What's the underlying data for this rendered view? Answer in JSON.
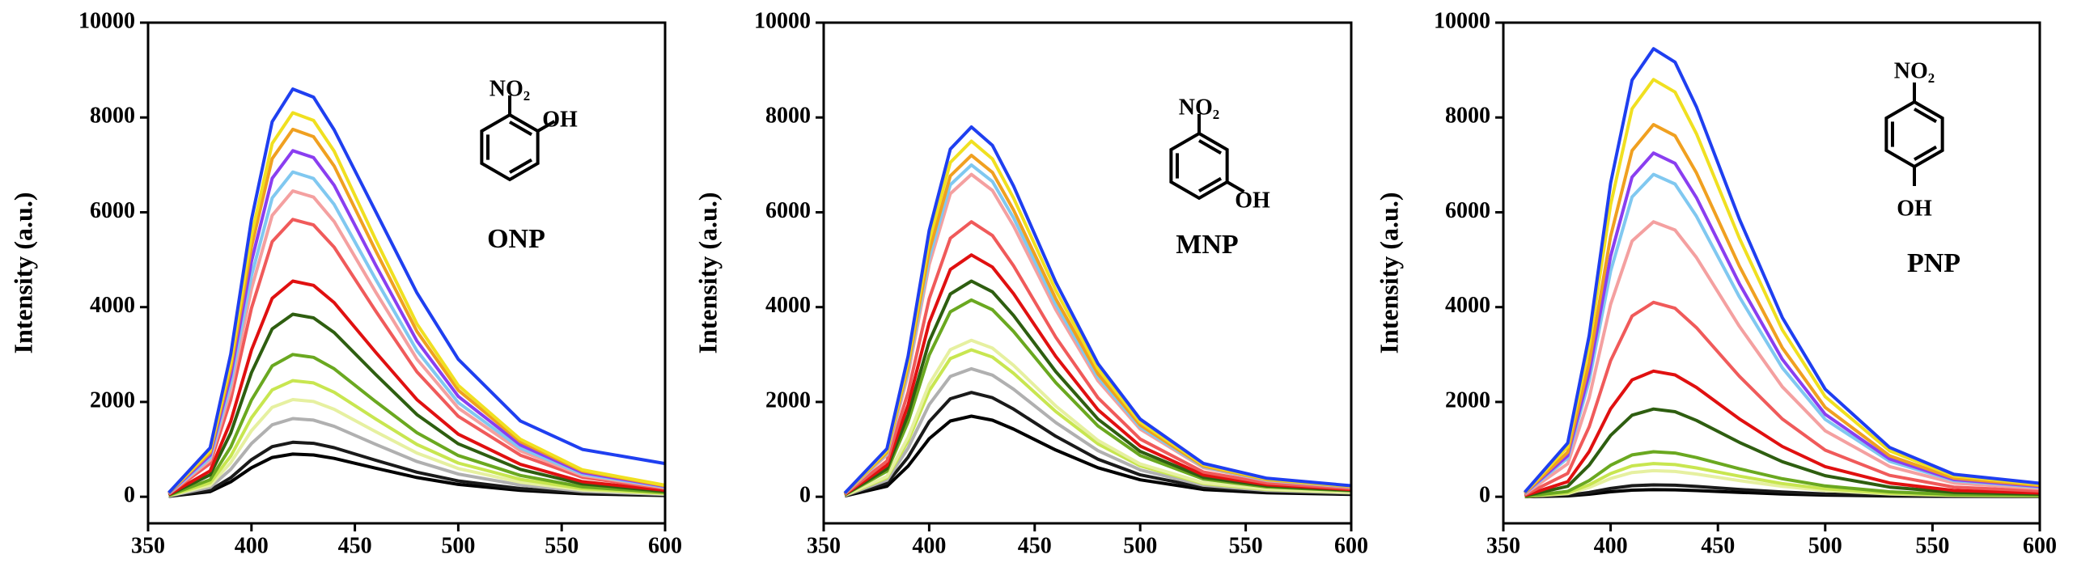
{
  "chart_data": [
    {
      "type": "line",
      "y_label": "Intensity (a.u.)",
      "annotations": [
        "NO₂",
        "OH",
        "ONP"
      ],
      "xlim": [
        350,
        600
      ],
      "ylim": [
        -560,
        10000
      ],
      "xticks": [
        350,
        400,
        450,
        500,
        550,
        600
      ],
      "yticks": [
        0,
        2000,
        4000,
        6000,
        8000,
        10000
      ],
      "x": [
        360,
        380,
        390,
        400,
        410,
        420,
        430,
        440,
        460,
        480,
        500,
        530,
        560,
        600
      ],
      "series": [
        {
          "color": "#000000",
          "values": [
            9,
            108,
            315,
            612,
            828,
            900,
            882,
            810,
            603,
            405,
            261,
            135,
            63,
            27
          ]
        },
        {
          "color": "#1a1a1a",
          "values": [
            12,
            138,
            403,
            782,
            1058,
            1150,
            1127,
            1035,
            771,
            518,
            334,
            173,
            81,
            35
          ]
        },
        {
          "color": "#b0b0b0",
          "values": [
            17,
            198,
            578,
            1122,
            1518,
            1650,
            1617,
            1485,
            1106,
            743,
            479,
            248,
            116,
            50
          ]
        },
        {
          "color": "#e6f0a0",
          "values": [
            21,
            246,
            718,
            1394,
            1886,
            2050,
            2009,
            1845,
            1374,
            923,
            595,
            308,
            144,
            62
          ]
        },
        {
          "color": "#c8e650",
          "values": [
            25,
            294,
            858,
            1666,
            2254,
            2450,
            2401,
            2205,
            1642,
            1103,
            711,
            368,
            172,
            74
          ]
        },
        {
          "color": "#6aa820",
          "values": [
            30,
            360,
            1050,
            2040,
            2760,
            3000,
            2940,
            2700,
            2010,
            1350,
            870,
            450,
            210,
            90
          ]
        },
        {
          "color": "#2e5e10",
          "values": [
            39,
            462,
            1348,
            2618,
            3542,
            3850,
            3773,
            3465,
            2580,
            1733,
            1117,
            578,
            270,
            116
          ]
        },
        {
          "color": "#e01010",
          "values": [
            46,
            546,
            1593,
            3094,
            4186,
            4550,
            4459,
            4095,
            3049,
            2048,
            1320,
            683,
            319,
            137
          ]
        },
        {
          "color": "#f05a5a",
          "values": [
            59,
            702,
            2048,
            3978,
            5382,
            5850,
            5733,
            5265,
            3920,
            2633,
            1697,
            878,
            410,
            176
          ]
        },
        {
          "color": "#f4a0a0",
          "values": [
            65,
            774,
            2258,
            4386,
            5934,
            6450,
            6321,
            5805,
            4322,
            2903,
            1871,
            968,
            452,
            194
          ]
        },
        {
          "color": "#80c8f0",
          "values": [
            69,
            822,
            2398,
            4658,
            6302,
            6850,
            6713,
            6165,
            4590,
            3083,
            1987,
            1028,
            480,
            206
          ]
        },
        {
          "color": "#8a3ef0",
          "values": [
            73,
            876,
            2555,
            4964,
            6716,
            7300,
            7154,
            6570,
            4891,
            3285,
            2117,
            1095,
            511,
            219
          ]
        },
        {
          "color": "#f0a020",
          "values": [
            78,
            930,
            2713,
            5270,
            7130,
            7750,
            7595,
            6975,
            5193,
            3488,
            2248,
            1163,
            543,
            233
          ]
        },
        {
          "color": "#f0e020",
          "values": [
            81,
            972,
            2835,
            5508,
            7452,
            8100,
            7938,
            7290,
            5427,
            3645,
            2349,
            1215,
            567,
            243
          ]
        },
        {
          "color": "#1f3ff0",
          "values": [
            86,
            1032,
            3010,
            5848,
            7912,
            8600,
            8428,
            7740,
            6020,
            4300,
            2900,
            1600,
            1000,
            700
          ]
        }
      ]
    },
    {
      "type": "line",
      "y_label": "Intensity (a.u.)",
      "annotations": [
        "NO₂",
        "OH",
        "MNP"
      ],
      "xlim": [
        350,
        600
      ],
      "ylim": [
        -560,
        10000
      ],
      "xticks": [
        350,
        400,
        450,
        500,
        550,
        600
      ],
      "yticks": [
        0,
        2000,
        4000,
        6000,
        8000,
        10000
      ],
      "x": [
        360,
        380,
        390,
        400,
        410,
        420,
        430,
        440,
        460,
        480,
        500,
        530,
        560,
        600
      ],
      "series": [
        {
          "color": "#000000",
          "values": [
            17,
            221,
            646,
            1224,
            1598,
            1700,
            1615,
            1428,
            986,
            612,
            357,
            153,
            85,
            51
          ]
        },
        {
          "color": "#1a1a1a",
          "values": [
            22,
            286,
            836,
            1584,
            2068,
            2200,
            2090,
            1848,
            1276,
            792,
            462,
            198,
            110,
            66
          ]
        },
        {
          "color": "#b0b0b0",
          "values": [
            27,
            351,
            1026,
            1944,
            2538,
            2700,
            2565,
            2268,
            1566,
            972,
            567,
            243,
            135,
            81
          ]
        },
        {
          "color": "#c8e650",
          "values": [
            31,
            403,
            1178,
            2232,
            2914,
            3100,
            2945,
            2604,
            1798,
            1116,
            651,
            279,
            155,
            93
          ]
        },
        {
          "color": "#e6f0a0",
          "values": [
            33,
            429,
            1254,
            2376,
            3102,
            3300,
            3135,
            2772,
            1914,
            1188,
            693,
            297,
            165,
            99
          ]
        },
        {
          "color": "#6aa820",
          "values": [
            42,
            540,
            1577,
            2988,
            3901,
            4150,
            3943,
            3486,
            2407,
            1494,
            872,
            374,
            208,
            125
          ]
        },
        {
          "color": "#2e5e10",
          "values": [
            46,
            592,
            1729,
            3276,
            4277,
            4550,
            4323,
            3822,
            2639,
            1638,
            956,
            410,
            228,
            137
          ]
        },
        {
          "color": "#e01010",
          "values": [
            51,
            663,
            1938,
            3672,
            4794,
            5100,
            4845,
            4284,
            2958,
            1836,
            1071,
            459,
            255,
            153
          ]
        },
        {
          "color": "#f05a5a",
          "values": [
            58,
            754,
            2204,
            4176,
            5452,
            5800,
            5510,
            4872,
            3364,
            2088,
            1218,
            522,
            290,
            174
          ]
        },
        {
          "color": "#f4a0a0",
          "values": [
            68,
            884,
            2584,
            4896,
            6392,
            6800,
            6460,
            5712,
            3944,
            2448,
            1428,
            612,
            340,
            204
          ]
        },
        {
          "color": "#80c8f0",
          "values": [
            70,
            910,
            2660,
            5040,
            6580,
            7000,
            6650,
            5880,
            4060,
            2520,
            1470,
            630,
            350,
            210
          ]
        },
        {
          "color": "#f0a020",
          "values": [
            72,
            936,
            2736,
            5184,
            6768,
            7200,
            6840,
            6048,
            4176,
            2592,
            1512,
            648,
            360,
            216
          ]
        },
        {
          "color": "#f0e020",
          "values": [
            75,
            975,
            2850,
            5400,
            7050,
            7500,
            7125,
            6300,
            4350,
            2700,
            1575,
            675,
            375,
            225
          ]
        },
        {
          "color": "#1f3ff0",
          "values": [
            78,
            1014,
            2964,
            5616,
            7332,
            7800,
            7410,
            6552,
            4524,
            2808,
            1638,
            702,
            390,
            234
          ]
        }
      ]
    },
    {
      "type": "line",
      "y_label": "Intensity (a.u.)",
      "annotations": [
        "NO₂",
        "OH",
        "PNP"
      ],
      "xlim": [
        350,
        600
      ],
      "ylim": [
        -560,
        10000
      ],
      "xticks": [
        350,
        400,
        450,
        500,
        550,
        600
      ],
      "yticks": [
        0,
        2000,
        4000,
        6000,
        8000,
        10000
      ],
      "x": [
        360,
        380,
        390,
        400,
        410,
        420,
        430,
        440,
        460,
        480,
        500,
        530,
        560,
        600
      ],
      "series": [
        {
          "color": "#000000",
          "values": [
            2,
            18,
            54,
            105,
            140,
            150,
            146,
            131,
            93,
            60,
            36,
            17,
            8,
            5
          ]
        },
        {
          "color": "#1a1a1a",
          "values": [
            3,
            30,
            90,
            175,
            233,
            250,
            243,
            218,
            155,
            100,
            60,
            28,
            13,
            8
          ]
        },
        {
          "color": "#e6f0a0",
          "values": [
            6,
            66,
            198,
            385,
            512,
            550,
            534,
            479,
            341,
            220,
            132,
            61,
            28,
            17
          ]
        },
        {
          "color": "#c8e650",
          "values": [
            7,
            84,
            252,
            490,
            651,
            700,
            679,
            609,
            434,
            280,
            168,
            77,
            35,
            21
          ]
        },
        {
          "color": "#6aa820",
          "values": [
            10,
            114,
            342,
            665,
            884,
            950,
            922,
            827,
            589,
            380,
            228,
            105,
            48,
            29
          ]
        },
        {
          "color": "#2e5e10",
          "values": [
            19,
            222,
            666,
            1295,
            1721,
            1850,
            1795,
            1610,
            1147,
            740,
            444,
            204,
            93,
            56
          ]
        },
        {
          "color": "#e01010",
          "values": [
            27,
            318,
            954,
            1855,
            2465,
            2650,
            2571,
            2306,
            1643,
            1060,
            636,
            292,
            133,
            80
          ]
        },
        {
          "color": "#f05a5a",
          "values": [
            41,
            492,
            1476,
            2870,
            3813,
            4100,
            3977,
            3567,
            2542,
            1640,
            984,
            451,
            205,
            123
          ]
        },
        {
          "color": "#f4a0a0",
          "values": [
            58,
            696,
            2088,
            4060,
            5394,
            5800,
            5626,
            5046,
            3596,
            2320,
            1392,
            638,
            290,
            174
          ]
        },
        {
          "color": "#80c8f0",
          "values": [
            68,
            816,
            2448,
            4760,
            6324,
            6800,
            6596,
            5916,
            4216,
            2720,
            1632,
            748,
            340,
            204
          ]
        },
        {
          "color": "#8a3ef0",
          "values": [
            73,
            870,
            2610,
            5075,
            6743,
            7250,
            7033,
            6308,
            4495,
            2900,
            1740,
            798,
            363,
            218
          ]
        },
        {
          "color": "#f0a020",
          "values": [
            79,
            942,
            2826,
            5495,
            7301,
            7850,
            7615,
            6830,
            4867,
            3140,
            1884,
            864,
            393,
            236
          ]
        },
        {
          "color": "#f0e020",
          "values": [
            88,
            1056,
            3168,
            6160,
            8184,
            8800,
            8536,
            7656,
            5456,
            3520,
            2112,
            968,
            440,
            264
          ]
        },
        {
          "color": "#1f3ff0",
          "values": [
            95,
            1134,
            3402,
            6615,
            8789,
            9450,
            9167,
            8222,
            5859,
            3780,
            2268,
            1040,
            473,
            284
          ]
        }
      ]
    }
  ]
}
